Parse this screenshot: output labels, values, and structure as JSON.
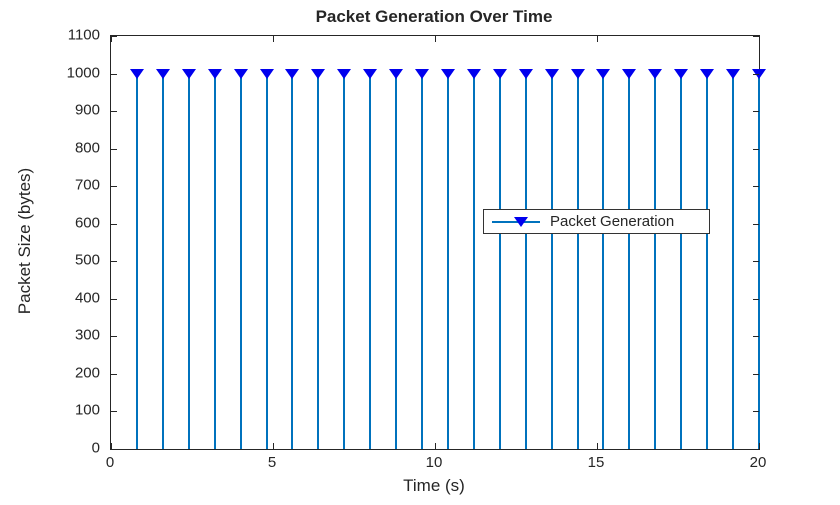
{
  "chart_data": {
    "type": "scatter",
    "variant": "stem",
    "title": "Packet Generation Over Time",
    "xlabel": "Time (s)",
    "ylabel": "Packet Size (bytes)",
    "xlim": [
      0,
      20
    ],
    "ylim": [
      0,
      1100
    ],
    "x_ticks": [
      0,
      5,
      10,
      15,
      20
    ],
    "y_ticks": [
      0,
      100,
      200,
      300,
      400,
      500,
      600,
      700,
      800,
      900,
      1000,
      1100
    ],
    "grid": false,
    "box": true,
    "series": [
      {
        "name": "Packet Generation",
        "x": [
          0.8,
          1.6,
          2.4,
          3.2,
          4.0,
          4.8,
          5.6,
          6.4,
          7.2,
          8.0,
          8.8,
          9.6,
          10.4,
          11.2,
          12.0,
          12.8,
          13.6,
          14.4,
          15.2,
          16.0,
          16.8,
          17.6,
          18.4,
          19.2,
          20.0
        ],
        "values": [
          1000,
          1000,
          1000,
          1000,
          1000,
          1000,
          1000,
          1000,
          1000,
          1000,
          1000,
          1000,
          1000,
          1000,
          1000,
          1000,
          1000,
          1000,
          1000,
          1000,
          1000,
          1000,
          1000,
          1000,
          1000
        ],
        "line_color": "#0072BD",
        "marker": "triangle-down",
        "marker_color": "#0000EE"
      }
    ],
    "legend": {
      "entries": [
        "Packet Generation"
      ],
      "position": "right-center"
    }
  },
  "colors": {
    "background": "#FFFFFF",
    "axis": "#262626",
    "text": "#262626",
    "stem_line": "#0072BD",
    "marker_fill": "#0000EE"
  }
}
